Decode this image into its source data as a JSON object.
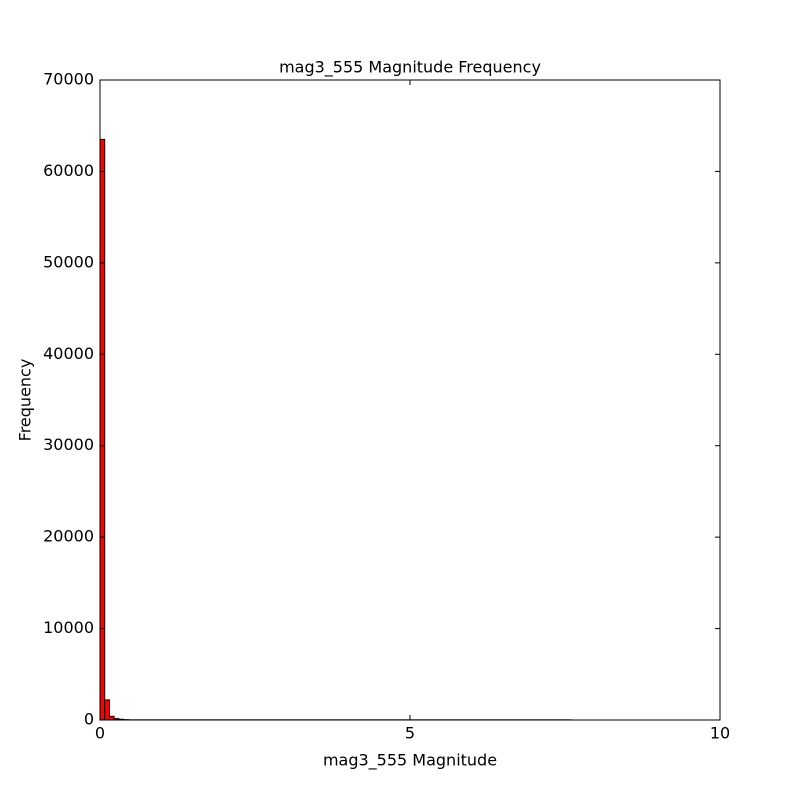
{
  "chart_data": {
    "type": "histogram",
    "title": "mag3_555 Magnitude Frequency",
    "x_label": "mag3_555 Magnitude",
    "y_label": "Frequency",
    "bins": [
      0,
      0.076,
      0.152,
      0.228,
      0.304,
      0.38,
      0.456,
      7.6
    ],
    "values": [
      63500,
      2200,
      400,
      150,
      80,
      40,
      20
    ],
    "color": "#ff0000",
    "edge_color": "#000000",
    "xlim": [
      0,
      10
    ],
    "xticks": [
      0,
      5,
      10
    ],
    "ylim": [
      0,
      70000
    ],
    "yticks": [
      0,
      10000,
      20000,
      30000,
      40000,
      50000,
      60000,
      70000
    ],
    "grid": false
  }
}
